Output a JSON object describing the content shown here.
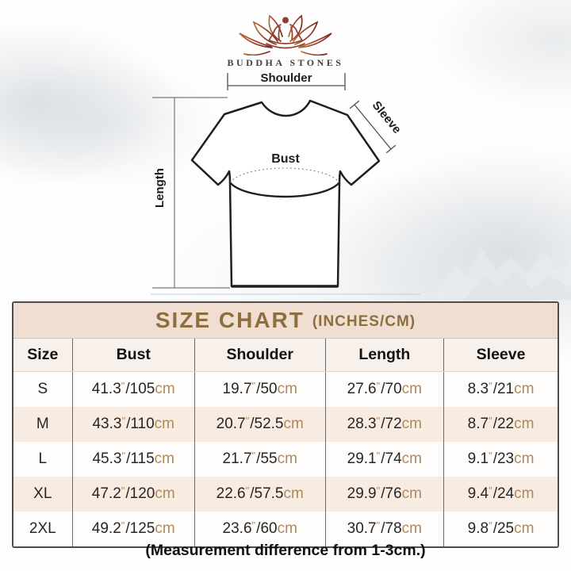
{
  "brand": {
    "name": "BUDDHA STONES"
  },
  "diagram": {
    "labels": {
      "shoulder": "Shoulder",
      "sleeve": "Sleeve",
      "bust": "Bust",
      "length": "Length"
    }
  },
  "size_chart": {
    "title": "SIZE CHART",
    "title_suffix": "(INCHES/CM)",
    "columns": [
      "Size",
      "Bust",
      "Shoulder",
      "Length",
      "Sleeve"
    ],
    "units": {
      "inch_mark": "\"",
      "separator": "/",
      "cm_label": "cm"
    },
    "rows": [
      {
        "size": "S",
        "bust": {
          "in": "41.3",
          "cm": "105"
        },
        "shoulder": {
          "in": "19.7",
          "cm": "50"
        },
        "length": {
          "in": "27.6",
          "cm": "70"
        },
        "sleeve": {
          "in": "8.3",
          "cm": "21"
        }
      },
      {
        "size": "M",
        "bust": {
          "in": "43.3",
          "cm": "110"
        },
        "shoulder": {
          "in": "20.7",
          "cm": "52.5"
        },
        "length": {
          "in": "28.3",
          "cm": "72"
        },
        "sleeve": {
          "in": "8.7",
          "cm": "22"
        }
      },
      {
        "size": "L",
        "bust": {
          "in": "45.3",
          "cm": "115"
        },
        "shoulder": {
          "in": "21.7",
          "cm": "55"
        },
        "length": {
          "in": "29.1",
          "cm": "74"
        },
        "sleeve": {
          "in": "9.1",
          "cm": "23"
        }
      },
      {
        "size": "XL",
        "bust": {
          "in": "47.2",
          "cm": "120"
        },
        "shoulder": {
          "in": "22.6",
          "cm": "57.5"
        },
        "length": {
          "in": "29.9",
          "cm": "76"
        },
        "sleeve": {
          "in": "9.4",
          "cm": "24"
        }
      },
      {
        "size": "2XL",
        "bust": {
          "in": "49.2",
          "cm": "125"
        },
        "shoulder": {
          "in": "23.6",
          "cm": "60"
        },
        "length": {
          "in": "30.7",
          "cm": "78"
        },
        "sleeve": {
          "in": "9.8",
          "cm": "25"
        }
      }
    ],
    "measure_keys": [
      "bust",
      "shoulder",
      "length",
      "sleeve"
    ]
  },
  "footer": {
    "note": "(Measurement difference from 1-3cm.)"
  },
  "colors": {
    "accent_gold": "#8c6f3d",
    "unit_tan": "#ae8a5c",
    "title_band_bg": "#f1ded3",
    "header_row_bg": "#f8f0ea",
    "row_alt_bg": "#f8ece2",
    "table_border": "#4e4e4e",
    "logo_brown_light": "#b96b2e",
    "logo_brown_dark": "#7c2c20"
  }
}
